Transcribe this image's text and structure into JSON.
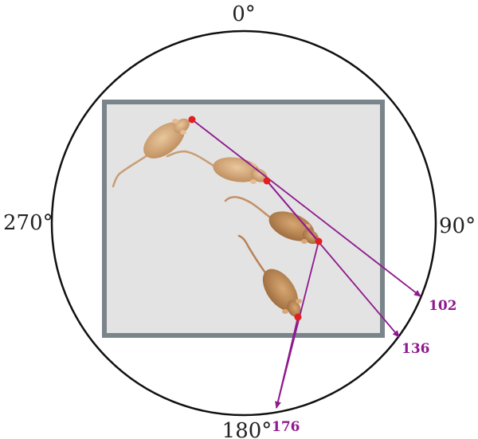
{
  "compass": {
    "top": "0°",
    "right": "90°",
    "bottom": "180°",
    "left": "270°"
  },
  "headings": [
    {
      "value": "102"
    },
    {
      "value": "136"
    },
    {
      "value": "176"
    }
  ],
  "colors": {
    "arrow": "#8e1a8e",
    "marker": "#e02020",
    "arena_fill": "#e3e3e3",
    "arena_border": "#7a858b",
    "circle": "#111111",
    "mouse_body": "#d6ae82",
    "mouse_dark": "#b78758"
  }
}
